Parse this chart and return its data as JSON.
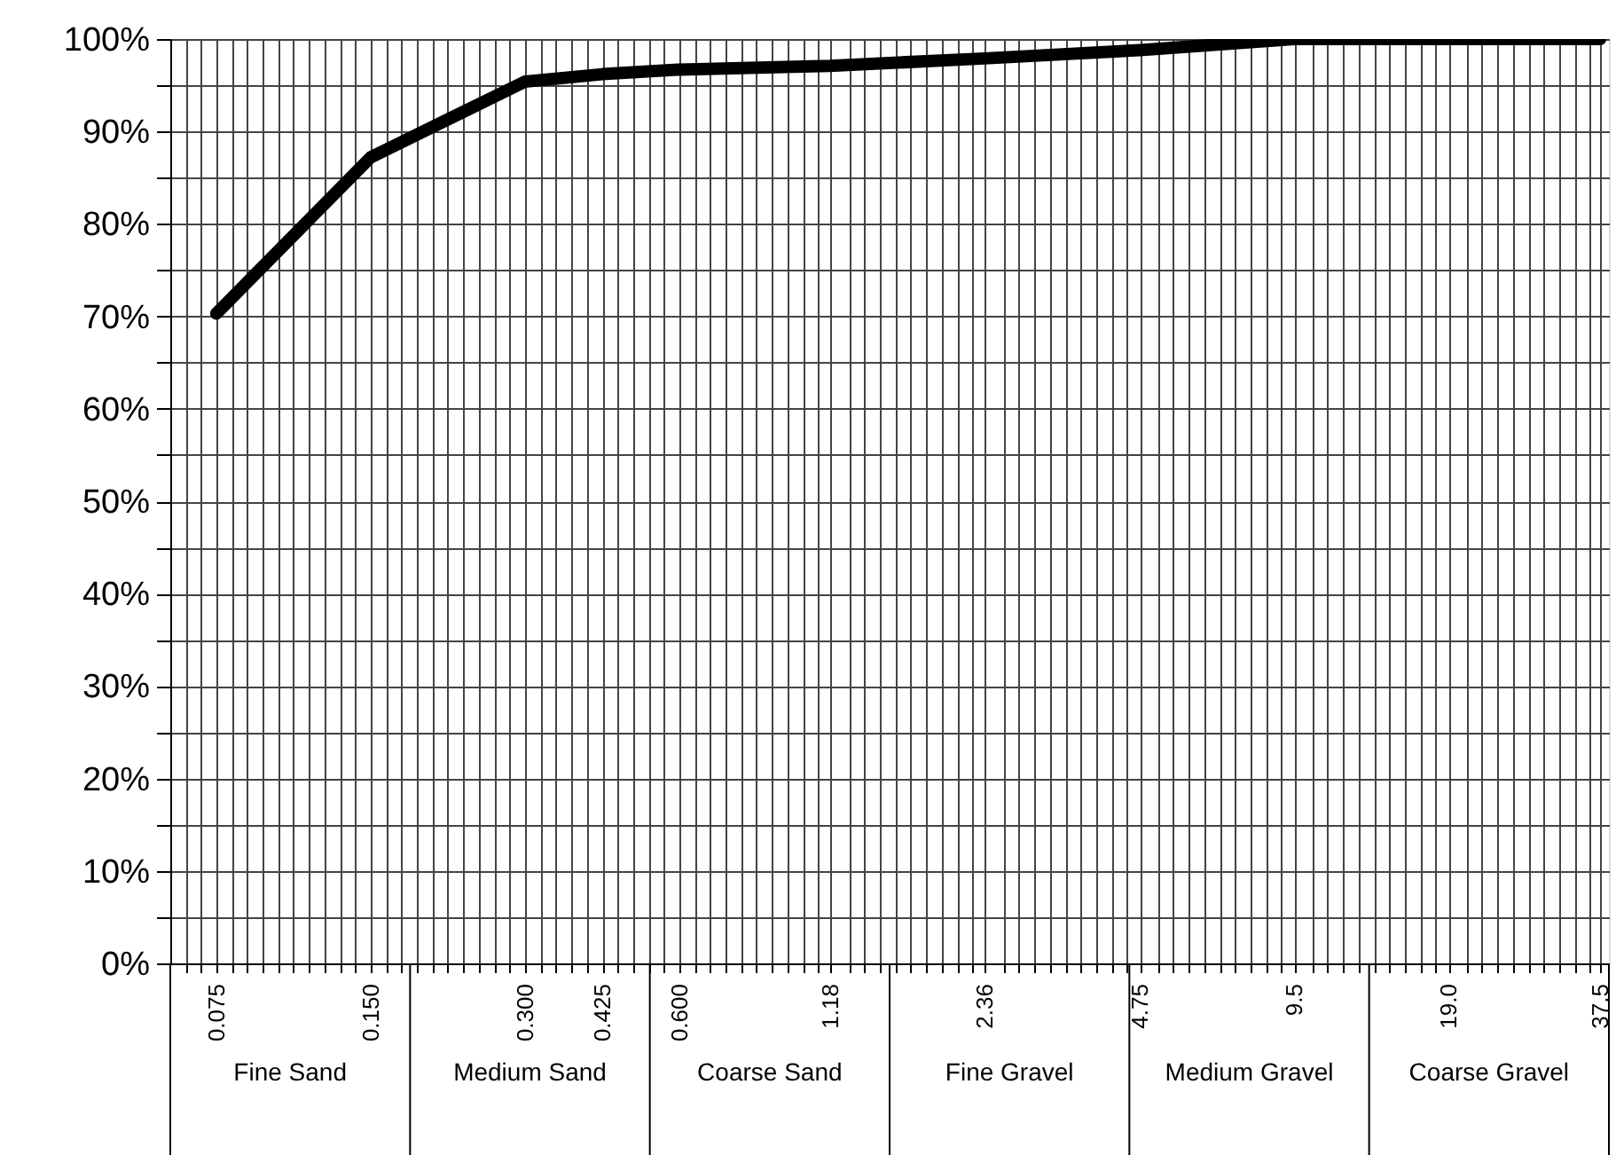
{
  "chart_data": {
    "type": "line",
    "x": [
      0.075,
      0.15,
      0.3,
      0.425,
      0.6,
      1.18,
      2.36,
      4.75,
      9.5,
      19.0,
      37.5
    ],
    "series": [
      {
        "color": "#000000",
        "values": [
          70.3,
          87.2,
          95.4,
          96.2,
          96.7,
          97.1,
          97.9,
          98.8,
          100,
          100,
          100
        ]
      }
    ],
    "log": "x",
    "xlim": [
      0.061,
      39
    ],
    "ylim": [
      0,
      100
    ],
    "xticks": [
      {
        "value": 0.06529,
        "label": null
      },
      {
        "value": 0.06998,
        "label": null
      },
      {
        "value": 0.075,
        "label": "0.075"
      },
      {
        "value": 0.08038,
        "label": null
      },
      {
        "value": 0.08615,
        "label": null
      },
      {
        "value": 0.09233,
        "label": null
      },
      {
        "value": 0.09896,
        "label": null
      },
      {
        "value": 0.1061,
        "label": null
      },
      {
        "value": 0.1137,
        "label": null
      },
      {
        "value": 0.1218,
        "label": null
      },
      {
        "value": 0.1306,
        "label": null
      },
      {
        "value": 0.14,
        "label": null
      },
      {
        "value": 0.15,
        "label": "0.150"
      },
      {
        "value": 0.1608,
        "label": null
      },
      {
        "value": 0.1723,
        "label": null
      },
      {
        "value": 0.1847,
        "label": null
      },
      {
        "value": 0.1979,
        "label": null
      },
      {
        "value": 0.2121,
        "label": null
      },
      {
        "value": 0.2274,
        "label": null
      },
      {
        "value": 0.2437,
        "label": null
      },
      {
        "value": 0.2612,
        "label": null
      },
      {
        "value": 0.2799,
        "label": null
      },
      {
        "value": 0.3,
        "label": "0.300"
      },
      {
        "value": 0.3215,
        "label": null
      },
      {
        "value": 0.3446,
        "label": null
      },
      {
        "value": 0.3693,
        "label": null
      },
      {
        "value": 0.3959,
        "label": null
      },
      {
        "value": 0.425,
        "label": "0.425"
      },
      {
        "value": 0.4547,
        "label": null
      },
      {
        "value": 0.4874,
        "label": null
      },
      {
        "value": 0.5223,
        "label": null
      },
      {
        "value": 0.5598,
        "label": null
      },
      {
        "value": 0.6,
        "label": "0.600"
      },
      {
        "value": 0.6431,
        "label": null
      },
      {
        "value": 0.6892,
        "label": null
      },
      {
        "value": 0.7387,
        "label": null
      },
      {
        "value": 0.7917,
        "label": null
      },
      {
        "value": 0.8485,
        "label": null
      },
      {
        "value": 0.9094,
        "label": null
      },
      {
        "value": 0.9747,
        "label": null
      },
      {
        "value": 1.045,
        "label": null
      },
      {
        "value": 1.12,
        "label": null
      },
      {
        "value": 1.18,
        "label": "1.18"
      },
      {
        "value": 1.286,
        "label": null
      },
      {
        "value": 1.378,
        "label": null
      },
      {
        "value": 1.477,
        "label": null
      },
      {
        "value": 1.583,
        "label": null
      },
      {
        "value": 1.697,
        "label": null
      },
      {
        "value": 1.819,
        "label": null
      },
      {
        "value": 1.949,
        "label": null
      },
      {
        "value": 2.089,
        "label": null
      },
      {
        "value": 2.239,
        "label": null
      },
      {
        "value": 2.36,
        "label": "2.36"
      },
      {
        "value": 2.572,
        "label": null
      },
      {
        "value": 2.757,
        "label": null
      },
      {
        "value": 2.955,
        "label": null
      },
      {
        "value": 3.167,
        "label": null
      },
      {
        "value": 3.394,
        "label": null
      },
      {
        "value": 3.638,
        "label": null
      },
      {
        "value": 3.899,
        "label": null
      },
      {
        "value": 4.179,
        "label": null
      },
      {
        "value": 4.479,
        "label": null
      },
      {
        "value": 4.75,
        "label": "4.75"
      },
      {
        "value": 5.145,
        "label": null
      },
      {
        "value": 5.514,
        "label": null
      },
      {
        "value": 5.91,
        "label": null
      },
      {
        "value": 6.334,
        "label": null
      },
      {
        "value": 6.788,
        "label": null
      },
      {
        "value": 7.275,
        "label": null
      },
      {
        "value": 7.798,
        "label": null
      },
      {
        "value": 8.357,
        "label": null
      },
      {
        "value": 8.957,
        "label": null
      },
      {
        "value": 9.5,
        "label": "9.5"
      },
      {
        "value": 10.29,
        "label": null
      },
      {
        "value": 11.03,
        "label": null
      },
      {
        "value": 11.82,
        "label": null
      },
      {
        "value": 12.67,
        "label": null
      },
      {
        "value": 13.58,
        "label": null
      },
      {
        "value": 14.55,
        "label": null
      },
      {
        "value": 15.6,
        "label": null
      },
      {
        "value": 16.71,
        "label": null
      },
      {
        "value": 17.91,
        "label": null
      },
      {
        "value": 19.0,
        "label": "19.0"
      },
      {
        "value": 20.58,
        "label": null
      },
      {
        "value": 22.06,
        "label": null
      },
      {
        "value": 23.64,
        "label": null
      },
      {
        "value": 25.33,
        "label": null
      },
      {
        "value": 27.15,
        "label": null
      },
      {
        "value": 29.1,
        "label": null
      },
      {
        "value": 31.19,
        "label": null
      },
      {
        "value": 33.43,
        "label": null
      },
      {
        "value": 35.83,
        "label": null
      },
      {
        "value": 37.5,
        "label": "37.5"
      }
    ],
    "yticks": [
      {
        "value": 0,
        "label": "0%"
      },
      {
        "value": 5,
        "label": null
      },
      {
        "value": 10,
        "label": "10%"
      },
      {
        "value": 15,
        "label": null
      },
      {
        "value": 20,
        "label": "20%"
      },
      {
        "value": 25,
        "label": null
      },
      {
        "value": 30,
        "label": "30%"
      },
      {
        "value": 35,
        "label": null
      },
      {
        "value": 40,
        "label": "40%"
      },
      {
        "value": 45,
        "label": null
      },
      {
        "value": 50,
        "label": "50%"
      },
      {
        "value": 55,
        "label": null
      },
      {
        "value": 60,
        "label": "60%"
      },
      {
        "value": 65,
        "label": null
      },
      {
        "value": 70,
        "label": "70%"
      },
      {
        "value": 75,
        "label": null
      },
      {
        "value": 80,
        "label": "80%"
      },
      {
        "value": 85,
        "label": null
      },
      {
        "value": 90,
        "label": "90%"
      },
      {
        "value": 95,
        "label": null
      },
      {
        "value": 100,
        "label": "100%"
      }
    ],
    "annotations": [
      "Fine Sand",
      "Medium Sand",
      "Coarse Sand",
      "Fine Gravel",
      "Medium Gravel",
      "Coarse Gravel"
    ],
    "grid": true,
    "marker": "none",
    "line_style": "solid"
  }
}
